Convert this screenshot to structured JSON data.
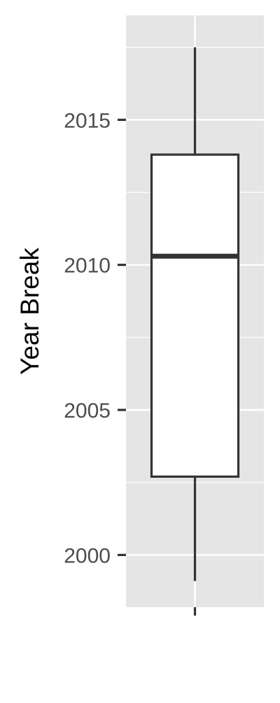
{
  "chart_data": {
    "type": "boxplot",
    "title": "",
    "xlabel": "",
    "ylabel": "Year Break",
    "ylim": [
      1998.2,
      2018.6
    ],
    "y_ticks": [
      2000,
      2005,
      2010,
      2015
    ],
    "y_tick_labels": [
      "2000",
      "2005",
      "2010",
      "2015"
    ],
    "grid": true,
    "legend": "none",
    "boxes": [
      {
        "min": 1999.1,
        "q1": 2002.7,
        "median": 2010.3,
        "q3": 2013.8,
        "max": 2017.5
      }
    ],
    "colors": {
      "panel_background": "#e5e5e5",
      "gridline": "#ffffff",
      "box_fill": "#ffffff",
      "box_stroke": "#333333",
      "axis_text": "#4d4d4d",
      "axis_title": "#000000",
      "tick": "#333333"
    }
  }
}
